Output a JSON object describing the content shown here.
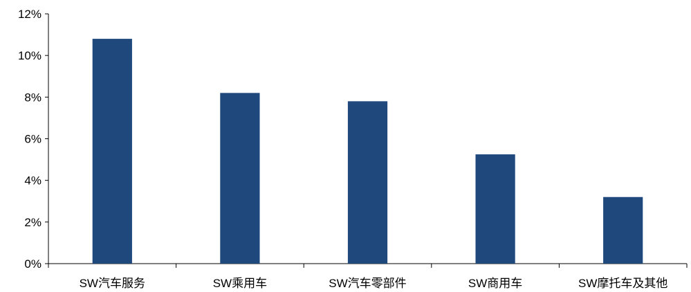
{
  "chart_data": {
    "type": "bar",
    "title": "",
    "xlabel": "",
    "ylabel": "",
    "categories": [
      "SW汽车服务",
      "SW乘用车",
      "SW汽车零部件",
      "SW商用车",
      "SW摩托车及其他"
    ],
    "values": [
      10.8,
      8.2,
      7.8,
      5.25,
      3.2
    ],
    "ylim": [
      0,
      12
    ],
    "yticks": [
      0,
      2,
      4,
      6,
      8,
      10,
      12
    ],
    "ytick_labels": [
      "0%",
      "2%",
      "4%",
      "6%",
      "8%",
      "10%",
      "12%"
    ],
    "grid": false,
    "legend": "none",
    "bar_color": "#1f497d"
  }
}
